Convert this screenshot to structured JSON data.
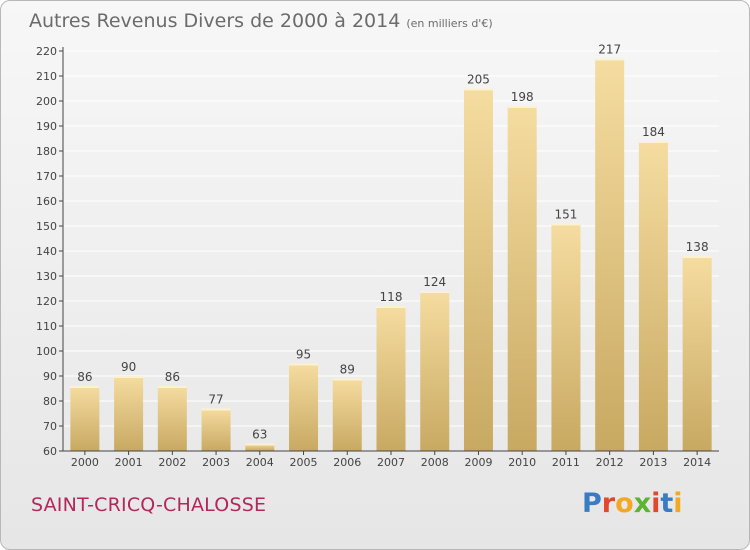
{
  "chart_data": {
    "type": "bar",
    "title": "Autres Revenus Divers de 2000 à 2014",
    "subtitle": "(en milliers d'€)",
    "categories": [
      "2000",
      "2001",
      "2002",
      "2003",
      "2004",
      "2005",
      "2006",
      "2007",
      "2008",
      "2009",
      "2010",
      "2011",
      "2012",
      "2013",
      "2014"
    ],
    "values": [
      86,
      90,
      86,
      77,
      63,
      95,
      89,
      118,
      124,
      205,
      198,
      151,
      217,
      184,
      138
    ],
    "xlabel": "",
    "ylabel": "",
    "ylim": [
      60,
      220
    ],
    "yticks": [
      60,
      70,
      80,
      90,
      100,
      110,
      120,
      130,
      140,
      150,
      160,
      170,
      180,
      190,
      200,
      210,
      220
    ],
    "grid": true,
    "colors": {
      "bar_top": "#f5dca0",
      "bar_bottom": "#c8a962",
      "grid": "#ffffff",
      "axis": "#444444"
    }
  },
  "footer": {
    "commune": "SAINT-CRICQ-CHALOSSE",
    "brand_letters": [
      "P",
      "r",
      "o",
      "x",
      "i",
      "t",
      "i"
    ],
    "brand_colors": [
      "#3a7cc4",
      "#e0492e",
      "#f2a823",
      "#5db332",
      "#e0492e",
      "#3a7cc4",
      "#f2a823"
    ]
  }
}
